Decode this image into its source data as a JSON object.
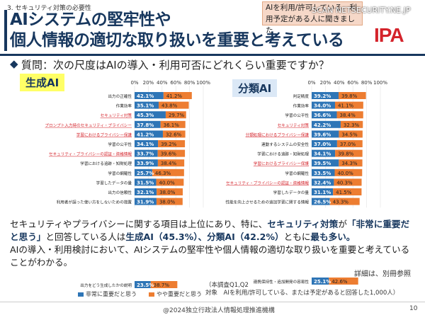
{
  "slide": {
    "section": "3. セキュリティ対策の必要性",
    "title_line1": "AIシステムの堅牢性や",
    "title_line2": "個人情報の適切な取り扱いを重要と考えている",
    "note": "AIを利用/許可している、利用予定がある人に聞きました",
    "watermark": "SCAN NETSECURITY.NE.JP",
    "logo": "IPA",
    "bullet": "◆",
    "question": "質問：次の尺度はAIの導入・利用可否にどれくらい重要ですか？",
    "summary_p1": "セキュリティやプライバシーに関する項目は上位にあり、特に、",
    "summary_b1": "セキュリティ対策",
    "summary_p2": "が",
    "summary_b2": "「非常に重要だと思う」",
    "summary_p3": "と回答している人は",
    "summary_b3": "生成AI（45.3%）、分類AI（42.2%）",
    "summary_p4": "ともに",
    "summary_b4": "最も多い。",
    "summary_line3": "AIの導入・利用検討において、AIシステムの堅牢性や個人情報の適切な取り扱いを重要と考えていることがわかる。",
    "detail": "詳細は、別冊参照",
    "legend_very": "非常に重要だと思う",
    "legend_some": "やや重要だと思う",
    "survey_line1": "（本調査Q1,Q2",
    "survey_line2": "対象　AIを利用/許可している、または予定があると回答した1,000人）",
    "footer": "@2024独立行政法人情報処理推進機構",
    "page_number": "10",
    "colors": {
      "very": "#2e75b6",
      "some": "#ed7d31",
      "navy": "#17375e",
      "red": "#d4232b"
    }
  },
  "chart_data": [
    {
      "type": "bar",
      "title": "生成AI",
      "orientation": "horizontal-stacked",
      "xlim": [
        0,
        100
      ],
      "xticks": [
        "0%",
        "20%",
        "40%",
        "60%",
        "80%",
        "100%"
      ],
      "categories": [
        "出力の正確性",
        "作業効率",
        "セキュリティ対策",
        "プロンプト入力時のセキュリティ・プライバシー",
        "学習におけるプライバシー保護",
        "学習の公平性",
        "セキュリティ・プライバシーの認証・資格情報",
        "学習における追跡・知財処理",
        "学習の網羅性",
        "学習したデータの量",
        "出力の信頼性",
        "利用者が誤った使い方をしないための措置"
      ],
      "highlight": [
        false,
        false,
        true,
        true,
        true,
        false,
        true,
        false,
        false,
        false,
        false,
        false
      ],
      "series": [
        {
          "name": "非常に重要だと思う",
          "values": [
            42.1,
            35.1,
            45.3,
            37.8,
            41.2,
            34.1,
            33.7,
            33.9,
            25.7,
            31.5,
            32.1,
            31.9
          ]
        },
        {
          "name": "やや重要だと思う",
          "values": [
            41.2,
            43.8,
            29.7,
            36.1,
            32.6,
            39.2,
            39.6,
            38.4,
            46.3,
            40.0,
            38.0,
            38.0
          ]
        }
      ],
      "extra_row": {
        "category": "出力をどう生成したかの説明",
        "values": [
          23.5,
          38.7
        ]
      }
    },
    {
      "type": "bar",
      "title": "分類AI",
      "orientation": "horizontal-stacked",
      "xlim": [
        0,
        100
      ],
      "xticks": [
        "0%",
        "20%",
        "40%",
        "60%",
        "80%",
        "100%"
      ],
      "categories": [
        "判定精度",
        "作業効率",
        "学習の公平性",
        "セキュリティ対策",
        "分類処理におけるプライバシー保護",
        "連動するシステムの安全性",
        "学習における追跡・知財処理",
        "学習におけるプライバシー保護",
        "学習の網羅性",
        "セキュリティ・プライバシーの認証・資格情報",
        "学習したデータの量",
        "性能を向上させるための追加学習に関する情報"
      ],
      "highlight": [
        false,
        false,
        false,
        true,
        true,
        false,
        false,
        true,
        false,
        true,
        false,
        false
      ],
      "series": [
        {
          "name": "非常に重要だと思う",
          "values": [
            39.2,
            34.0,
            36.6,
            42.2,
            39.6,
            37.0,
            34.1,
            39.5,
            33.5,
            32.4,
            31.1,
            26.5
          ]
        },
        {
          "name": "やや重要だと思う",
          "values": [
            39.8,
            41.1,
            38.4,
            32.3,
            34.5,
            37.0,
            39.8,
            34.3,
            40.0,
            40.3,
            41.5,
            43.3
          ]
        }
      ],
      "extra_row": {
        "category": "連携保持性・追加開発の容易性",
        "values": [
          25.1,
          42.6
        ]
      }
    }
  ]
}
